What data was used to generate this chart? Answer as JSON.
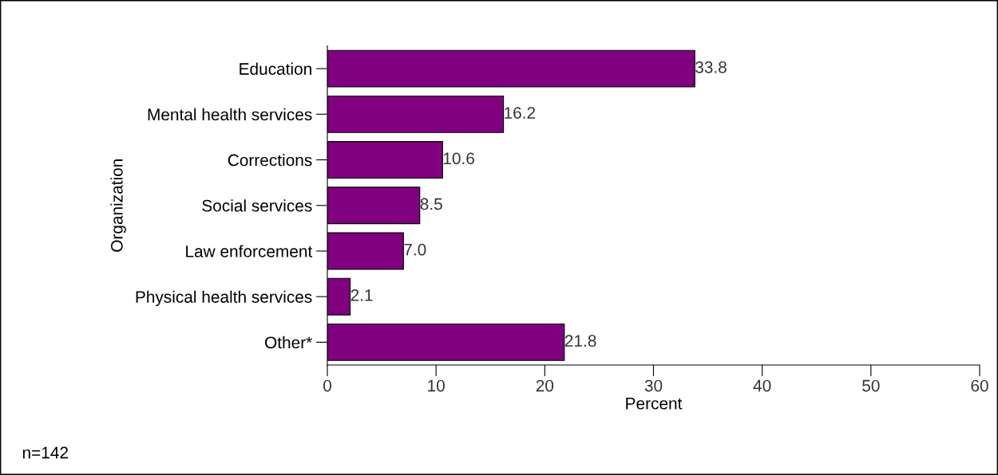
{
  "chart_data": {
    "type": "bar",
    "orientation": "horizontal",
    "xlabel": "Percent",
    "ylabel": "Organization",
    "categories": [
      "Education",
      "Mental health services",
      "Corrections",
      "Social services",
      "Law enforcement",
      "Physical health services",
      "Other*"
    ],
    "values": [
      33.8,
      16.2,
      10.6,
      8.5,
      7.0,
      2.1,
      21.8
    ],
    "value_labels": [
      "33.8",
      "16.2",
      "10.6",
      "8.5",
      "7.0",
      "2.1",
      "21.8"
    ],
    "color": "#800080",
    "xlim": [
      0,
      60
    ],
    "xticks": [
      0,
      10,
      20,
      30,
      40,
      50,
      60
    ],
    "grid": false,
    "legend": false,
    "annotations": [
      "n=142"
    ]
  }
}
